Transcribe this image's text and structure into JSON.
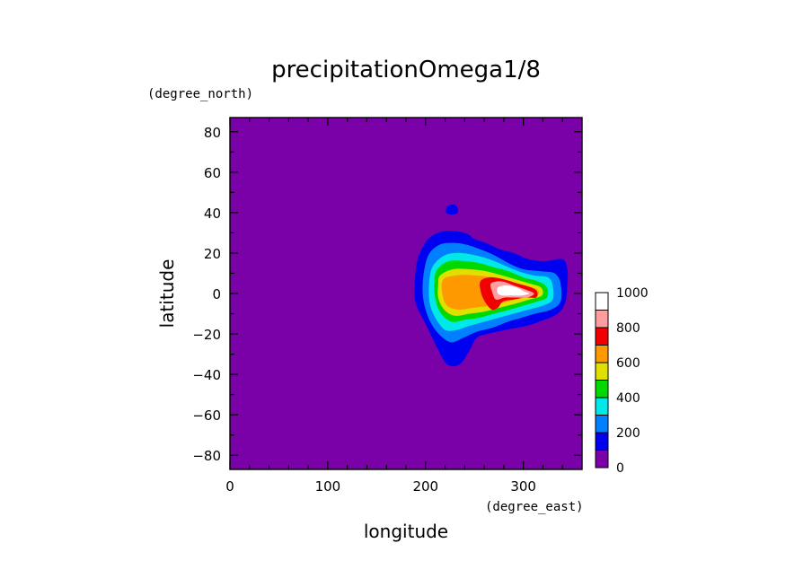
{
  "chart_data": {
    "type": "heatmap",
    "title": "precipitationOmega1/8",
    "xlabel": "longitude",
    "ylabel": "latitude",
    "x_unit": "(degree_east)",
    "y_unit": "(degree_north)",
    "xlim": [
      0,
      360
    ],
    "ylim": [
      -87,
      87
    ],
    "x_ticks": [
      "0",
      "100",
      "200",
      "300"
    ],
    "y_ticks": [
      "80",
      "60",
      "40",
      "20",
      "0",
      "−20",
      "−40",
      "−60",
      "−80"
    ],
    "x_tick_values": [
      0,
      100,
      200,
      300
    ],
    "y_tick_values": [
      80,
      60,
      40,
      20,
      0,
      -20,
      -40,
      -60,
      -80
    ],
    "background_level": "0-100",
    "colorbar": {
      "levels": [
        0,
        100,
        200,
        300,
        400,
        500,
        600,
        700,
        800,
        900,
        1000
      ],
      "tick_labels": [
        "1000",
        "800",
        "600",
        "400",
        "200",
        "0"
      ],
      "tick_values": [
        1000,
        800,
        600,
        400,
        200,
        0
      ],
      "colors": [
        "#7a00a8",
        "#0000f0",
        "#0080ff",
        "#00e8e8",
        "#00d800",
        "#e0e000",
        "#ff9900",
        "#f00000",
        "#ff9ea0",
        "#ffffff"
      ]
    },
    "contours": [
      {
        "level": 100,
        "color": "#0000f0",
        "points": [
          [
            196,
            22
          ],
          [
            205,
            28
          ],
          [
            220,
            31
          ],
          [
            240,
            30
          ],
          [
            250,
            27
          ],
          [
            262,
            25
          ],
          [
            275,
            22
          ],
          [
            290,
            20
          ],
          [
            305,
            17
          ],
          [
            322,
            16
          ],
          [
            340,
            17
          ],
          [
            345,
            12
          ],
          [
            345,
            5
          ],
          [
            343,
            -4
          ],
          [
            335,
            -10
          ],
          [
            316,
            -14
          ],
          [
            303,
            -16
          ],
          [
            282,
            -18
          ],
          [
            263,
            -20
          ],
          [
            252,
            -22
          ],
          [
            245,
            -28
          ],
          [
            235,
            -35
          ],
          [
            222,
            -35
          ],
          [
            212,
            -27
          ],
          [
            200,
            -15
          ],
          [
            190,
            -5
          ],
          [
            189,
            5
          ],
          [
            191,
            15
          ]
        ]
      },
      {
        "level": 100,
        "color": "#0000f0",
        "points": [
          [
            222,
            43
          ],
          [
            228,
            44
          ],
          [
            232,
            43
          ],
          [
            233,
            40
          ],
          [
            227,
            39
          ],
          [
            221,
            40
          ]
        ]
      },
      {
        "level": 200,
        "color": "#0080ff",
        "points": [
          [
            202,
            18
          ],
          [
            214,
            24
          ],
          [
            230,
            25
          ],
          [
            243,
            24
          ],
          [
            255,
            22
          ],
          [
            270,
            19
          ],
          [
            285,
            15
          ],
          [
            300,
            12
          ],
          [
            318,
            11
          ],
          [
            332,
            10
          ],
          [
            338,
            5
          ],
          [
            338,
            -4
          ],
          [
            328,
            -8
          ],
          [
            312,
            -10
          ],
          [
            298,
            -12
          ],
          [
            284,
            -14
          ],
          [
            268,
            -17
          ],
          [
            252,
            -19
          ],
          [
            238,
            -22
          ],
          [
            225,
            -24
          ],
          [
            210,
            -18
          ],
          [
            200,
            -8
          ],
          [
            197,
            4
          ]
        ]
      },
      {
        "level": 300,
        "color": "#00e8e8",
        "points": [
          [
            208,
            14
          ],
          [
            220,
            19
          ],
          [
            235,
            20
          ],
          [
            250,
            19
          ],
          [
            265,
            17
          ],
          [
            280,
            14
          ],
          [
            295,
            11
          ],
          [
            310,
            9
          ],
          [
            325,
            8
          ],
          [
            330,
            4
          ],
          [
            330,
            -3
          ],
          [
            320,
            -6
          ],
          [
            305,
            -8
          ],
          [
            290,
            -10
          ],
          [
            275,
            -12
          ],
          [
            260,
            -14
          ],
          [
            245,
            -16
          ],
          [
            232,
            -18
          ],
          [
            220,
            -18
          ],
          [
            210,
            -12
          ],
          [
            204,
            -4
          ],
          [
            204,
            7
          ]
        ]
      },
      {
        "level": 400,
        "color": "#00d800",
        "points": [
          [
            212,
            12
          ],
          [
            224,
            16
          ],
          [
            240,
            16
          ],
          [
            255,
            15
          ],
          [
            270,
            13
          ],
          [
            285,
            11
          ],
          [
            300,
            8
          ],
          [
            315,
            6
          ],
          [
            324,
            3
          ],
          [
            324,
            -2
          ],
          [
            314,
            -4
          ],
          [
            300,
            -6
          ],
          [
            286,
            -8
          ],
          [
            270,
            -10
          ],
          [
            255,
            -12
          ],
          [
            240,
            -13
          ],
          [
            227,
            -14
          ],
          [
            216,
            -10
          ],
          [
            210,
            -3
          ],
          [
            209,
            6
          ]
        ]
      },
      {
        "level": 500,
        "color": "#e0e000",
        "points": [
          [
            215,
            9
          ],
          [
            228,
            12
          ],
          [
            245,
            12
          ],
          [
            262,
            11
          ],
          [
            278,
            9
          ],
          [
            292,
            7
          ],
          [
            306,
            5
          ],
          [
            318,
            3
          ],
          [
            319,
            -1
          ],
          [
            306,
            -3
          ],
          [
            292,
            -5
          ],
          [
            276,
            -7
          ],
          [
            260,
            -9
          ],
          [
            245,
            -10
          ],
          [
            230,
            -11
          ],
          [
            219,
            -8
          ],
          [
            213,
            -2
          ],
          [
            213,
            5
          ]
        ]
      },
      {
        "level": 700,
        "color": "#ff9900",
        "points": [
          [
            218,
            7
          ],
          [
            232,
            9
          ],
          [
            250,
            9
          ],
          [
            268,
            8
          ],
          [
            284,
            6
          ],
          [
            300,
            4
          ],
          [
            314,
            2
          ],
          [
            314,
            -1
          ],
          [
            300,
            -2
          ],
          [
            284,
            -4
          ],
          [
            268,
            -6
          ],
          [
            250,
            -7
          ],
          [
            234,
            -8
          ],
          [
            222,
            -6
          ],
          [
            217,
            0
          ]
        ]
      },
      {
        "level": 800,
        "color": "#f00000",
        "points": [
          [
            256,
            6
          ],
          [
            266,
            8
          ],
          [
            280,
            7
          ],
          [
            294,
            5
          ],
          [
            308,
            3
          ],
          [
            314,
            1
          ],
          [
            313,
            -2
          ],
          [
            302,
            -2
          ],
          [
            290,
            -3
          ],
          [
            279,
            -4
          ],
          [
            274,
            -7
          ],
          [
            268,
            -8
          ],
          [
            262,
            -5
          ],
          [
            257,
            0
          ]
        ]
      },
      {
        "level": 900,
        "color": "#ff9ea0",
        "points": [
          [
            267,
            5
          ],
          [
            278,
            6
          ],
          [
            290,
            4
          ],
          [
            302,
            2
          ],
          [
            311,
            0
          ],
          [
            304,
            -2
          ],
          [
            292,
            -2
          ],
          [
            281,
            -2
          ],
          [
            272,
            -3
          ],
          [
            268,
            1
          ]
        ]
      },
      {
        "level": 1000,
        "color": "#ffffff",
        "points": [
          [
            274,
            3
          ],
          [
            283,
            4
          ],
          [
            293,
            3
          ],
          [
            301,
            1
          ],
          [
            306,
            0
          ],
          [
            298,
            -1
          ],
          [
            288,
            -1
          ],
          [
            279,
            -1
          ],
          [
            274,
            0
          ]
        ]
      }
    ]
  }
}
